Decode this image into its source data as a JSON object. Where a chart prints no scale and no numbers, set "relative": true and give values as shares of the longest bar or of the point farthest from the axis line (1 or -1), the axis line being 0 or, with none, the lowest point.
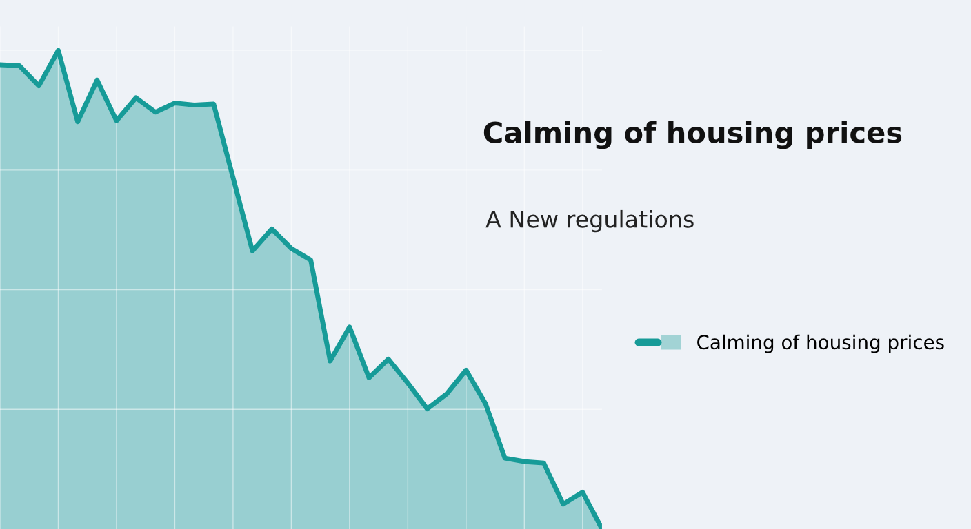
{
  "chart_data": {
    "type": "area",
    "title": "Calming of housing prices",
    "subtitle": "A New regulations",
    "relative": true,
    "grid": true,
    "legend": "right",
    "categories": [
      null,
      null,
      null,
      null,
      null,
      null,
      null,
      null,
      null,
      null,
      null,
      null,
      null,
      null,
      null,
      null,
      null,
      null,
      null,
      null,
      null,
      null,
      null,
      null,
      null,
      null,
      null,
      null,
      null,
      null,
      null,
      null
    ],
    "series": [
      {
        "name": "Calming of housing prices",
        "color": "#179b98",
        "values": [
          0.97,
          0.968,
          0.926,
          1,
          0.851,
          0.938,
          0.853,
          0.901,
          0.871,
          0.89,
          0.886,
          0.888,
          0.734,
          0.581,
          0.627,
          0.586,
          0.562,
          0.351,
          0.422,
          0.316,
          0.355,
          0.305,
          0.251,
          0.282,
          0.332,
          0.262,
          0.148,
          0.141,
          0.138,
          0.052,
          0.077,
          0
        ]
      }
    ]
  }
}
